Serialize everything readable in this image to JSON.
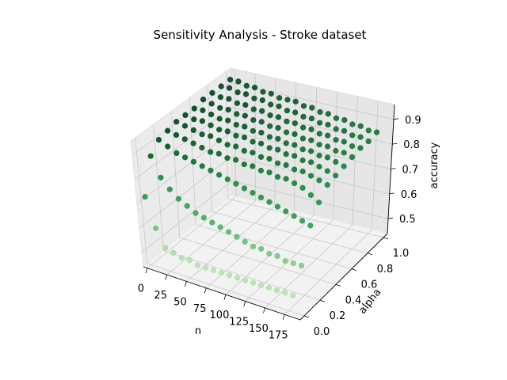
{
  "chart_data": {
    "type": "scatter3d",
    "title": "Sensitivity Analysis - Stroke dataset",
    "xlabel": "n",
    "ylabel": "alpha",
    "zlabel": "accuracy",
    "xlim": [
      -5,
      195
    ],
    "ylim": [
      -0.05,
      1.05
    ],
    "zlim": [
      0.44,
      0.96
    ],
    "x_ticks": [
      0,
      25,
      50,
      75,
      100,
      125,
      150,
      175
    ],
    "y_ticks": [
      0.0,
      0.2,
      0.4,
      0.6,
      0.8,
      1.0
    ],
    "y_tick_labels": [
      "0.0",
      "0.2",
      "0.4",
      "0.6",
      "0.8",
      "1.0"
    ],
    "z_ticks": [
      0.5,
      0.6,
      0.7,
      0.8,
      0.9
    ],
    "z_tick_labels": [
      "0.5",
      "0.6",
      "0.7",
      "0.8",
      "0.9"
    ],
    "grid": true,
    "colormap": "Greens",
    "marker_color_dark": "#00441b",
    "marker_color_light": "#e5f5e0",
    "alpha_series": [
      0.0,
      0.1,
      0.2,
      0.3,
      0.4,
      0.5,
      0.6,
      0.7,
      0.8,
      0.9,
      1.0
    ],
    "n_values": [
      0,
      10,
      20,
      30,
      40,
      50,
      60,
      70,
      80,
      90,
      100,
      110,
      120,
      130,
      140,
      150,
      160,
      170,
      180
    ],
    "accuracy_grid": [
      [
        0.72,
        0.6,
        0.53,
        0.52,
        0.51,
        0.51,
        0.5,
        0.5,
        0.5,
        0.5,
        0.5,
        0.5,
        0.5,
        0.5,
        0.5,
        0.5,
        0.5,
        0.5,
        0.5
      ],
      [
        0.86,
        0.78,
        0.74,
        0.71,
        0.69,
        0.67,
        0.66,
        0.65,
        0.64,
        0.63,
        0.62,
        0.61,
        0.6,
        0.6,
        0.59,
        0.59,
        0.58,
        0.58,
        0.58
      ],
      [
        0.9,
        0.88,
        0.86,
        0.85,
        0.84,
        0.83,
        0.82,
        0.81,
        0.8,
        0.79,
        0.78,
        0.77,
        0.76,
        0.75,
        0.74,
        0.73,
        0.72,
        0.71,
        0.7
      ],
      [
        0.91,
        0.9,
        0.89,
        0.88,
        0.87,
        0.86,
        0.86,
        0.85,
        0.85,
        0.84,
        0.84,
        0.83,
        0.83,
        0.82,
        0.82,
        0.81,
        0.8,
        0.78,
        0.76
      ],
      [
        0.92,
        0.91,
        0.9,
        0.89,
        0.89,
        0.88,
        0.87,
        0.87,
        0.86,
        0.86,
        0.85,
        0.85,
        0.84,
        0.84,
        0.83,
        0.83,
        0.82,
        0.81,
        0.8
      ],
      [
        0.92,
        0.91,
        0.91,
        0.9,
        0.89,
        0.89,
        0.88,
        0.88,
        0.87,
        0.87,
        0.86,
        0.86,
        0.85,
        0.85,
        0.84,
        0.84,
        0.83,
        0.82,
        0.81
      ],
      [
        0.92,
        0.92,
        0.91,
        0.9,
        0.9,
        0.89,
        0.89,
        0.88,
        0.88,
        0.87,
        0.87,
        0.86,
        0.86,
        0.85,
        0.85,
        0.84,
        0.84,
        0.83,
        0.82
      ],
      [
        0.93,
        0.92,
        0.91,
        0.91,
        0.9,
        0.9,
        0.89,
        0.89,
        0.88,
        0.88,
        0.87,
        0.87,
        0.86,
        0.86,
        0.85,
        0.85,
        0.84,
        0.84,
        0.83
      ],
      [
        0.93,
        0.92,
        0.92,
        0.91,
        0.91,
        0.9,
        0.9,
        0.89,
        0.89,
        0.88,
        0.88,
        0.87,
        0.87,
        0.86,
        0.86,
        0.85,
        0.85,
        0.84,
        0.84
      ],
      [
        0.93,
        0.93,
        0.92,
        0.92,
        0.91,
        0.91,
        0.9,
        0.9,
        0.89,
        0.89,
        0.88,
        0.88,
        0.87,
        0.87,
        0.86,
        0.86,
        0.85,
        0.85,
        0.84
      ],
      [
        0.93,
        0.93,
        0.92,
        0.92,
        0.91,
        0.91,
        0.9,
        0.9,
        0.9,
        0.89,
        0.89,
        0.88,
        0.88,
        0.87,
        0.87,
        0.86,
        0.86,
        0.85,
        0.85
      ]
    ]
  }
}
